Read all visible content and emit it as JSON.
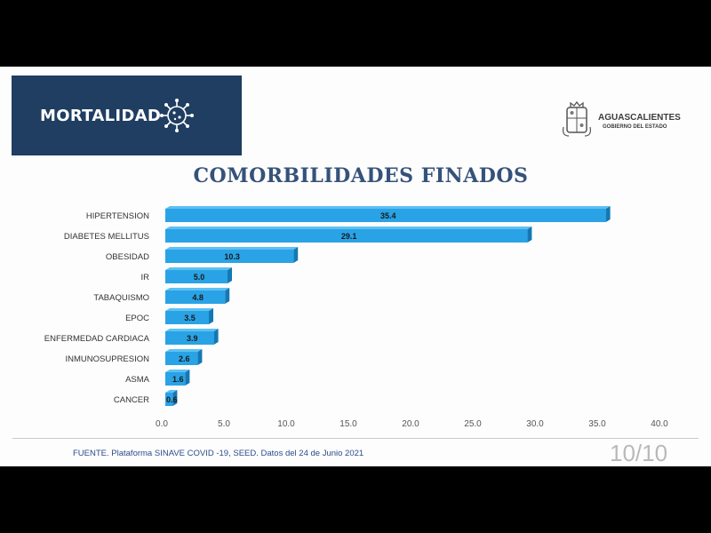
{
  "header": {
    "banner_title": "MORTALIDAD",
    "banner_icon": "virus-icon",
    "logo_name": "AGUASCALIENTES",
    "logo_subtitle": "GOBIERNO DEL ESTADO",
    "colors": {
      "banner": "#1f3e61",
      "bar": "#29a3e6",
      "title": "#35527a"
    }
  },
  "chart_data": {
    "type": "bar",
    "orientation": "horizontal",
    "title": "COMORBILIDADES FINADOS",
    "categories": [
      "HIPERTENSION",
      "DIABETES MELLITUS",
      "OBESIDAD",
      "IR",
      "TABAQUISMO",
      "EPOC",
      "ENFERMEDAD CARDIACA",
      "INMUNOSUPRESION",
      "ASMA",
      "CANCER"
    ],
    "values": [
      35.4,
      29.1,
      10.3,
      5.0,
      4.8,
      3.5,
      3.9,
      2.6,
      1.6,
      0.6
    ],
    "value_labels": [
      "35.4",
      "29.1",
      "10.3",
      "5.0",
      "4.8",
      "3.5",
      "3.9",
      "2.6",
      "1.6",
      "0.6"
    ],
    "xlim": [
      0,
      40
    ],
    "x_ticks": [
      "0.0",
      "5.0",
      "10.0",
      "15.0",
      "20.0",
      "25.0",
      "30.0",
      "35.0",
      "40.0"
    ],
    "xlabel": "",
    "ylabel": "",
    "grid": false,
    "legend": "none"
  },
  "footer": {
    "source": "FUENTE. Plataforma SINAVE COVID -19, SEED. Datos del 24 de Junio 2021",
    "page": "10/10"
  }
}
